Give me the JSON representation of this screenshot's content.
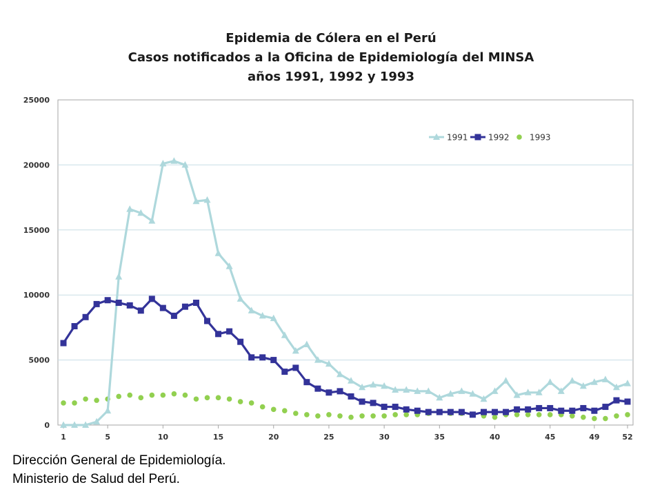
{
  "chart_data": {
    "type": "line",
    "title": "Epidemia de Cólera en el Perú",
    "subtitle_lines": [
      "Casos notificados a la Oficina de Epidemiología del MINSA",
      "años 1991, 1992 y 1993"
    ],
    "xlabel": "",
    "ylabel": "",
    "xlim": [
      1,
      52
    ],
    "ylim": [
      0,
      25000
    ],
    "x_tick_labels": [
      1,
      5,
      10,
      15,
      20,
      25,
      30,
      35,
      40,
      45,
      49,
      52
    ],
    "y_tick_labels": [
      0,
      5000,
      10000,
      15000,
      20000,
      25000
    ],
    "grid": "horizontal",
    "legend_position": "top-right",
    "x": [
      1,
      2,
      3,
      4,
      5,
      6,
      7,
      8,
      9,
      10,
      11,
      12,
      13,
      14,
      15,
      16,
      17,
      18,
      19,
      20,
      21,
      22,
      23,
      24,
      25,
      26,
      27,
      28,
      29,
      30,
      31,
      32,
      33,
      34,
      35,
      36,
      37,
      38,
      39,
      40,
      41,
      42,
      43,
      44,
      45,
      46,
      47,
      48,
      49,
      50,
      51,
      52
    ],
    "series": [
      {
        "name": "1991",
        "color": "#aed8dc",
        "marker": "triangle",
        "line": true,
        "values": [
          0,
          0,
          0,
          250,
          1100,
          11400,
          16600,
          16300,
          15700,
          20100,
          20300,
          20000,
          17200,
          17300,
          13200,
          12200,
          9700,
          8800,
          8400,
          8200,
          6900,
          5700,
          6200,
          5000,
          4700,
          3900,
          3400,
          2900,
          3100,
          3000,
          2700,
          2700,
          2600,
          2600,
          2100,
          2400,
          2600,
          2400,
          2000,
          2600,
          3400,
          2300,
          2500,
          2500,
          3300,
          2600,
          3400,
          3000,
          3300,
          3500,
          2900,
          3200
        ]
      },
      {
        "name": "1992",
        "color": "#333399",
        "marker": "square",
        "line": true,
        "values": [
          6300,
          7600,
          8300,
          9300,
          9600,
          9400,
          9200,
          8800,
          9700,
          9000,
          8400,
          9100,
          9400,
          8000,
          7000,
          7200,
          6400,
          5200,
          5200,
          5000,
          4100,
          4400,
          3300,
          2800,
          2500,
          2600,
          2200,
          1800,
          1700,
          1400,
          1400,
          1200,
          1100,
          1000,
          1000,
          1000,
          1000,
          800,
          1000,
          1000,
          1000,
          1200,
          1200,
          1300,
          1300,
          1100,
          1100,
          1300,
          1100,
          1400,
          1900,
          1800
        ]
      },
      {
        "name": "1993",
        "color": "#92d050",
        "marker": "circle",
        "line": false,
        "values": [
          1700,
          1700,
          2000,
          1900,
          2000,
          2200,
          2300,
          2100,
          2300,
          2300,
          2400,
          2300,
          2000,
          2100,
          2100,
          2000,
          1800,
          1700,
          1400,
          1200,
          1100,
          900,
          800,
          700,
          800,
          700,
          600,
          700,
          700,
          700,
          800,
          800,
          800,
          900,
          1000,
          900,
          900,
          800,
          700,
          600,
          800,
          800,
          800,
          800,
          800,
          800,
          700,
          600,
          500,
          500,
          700,
          800
        ]
      }
    ]
  },
  "source": {
    "line1": "Dirección General de Epidemiología.",
    "line2": "Ministerio de Salud del Perú."
  }
}
